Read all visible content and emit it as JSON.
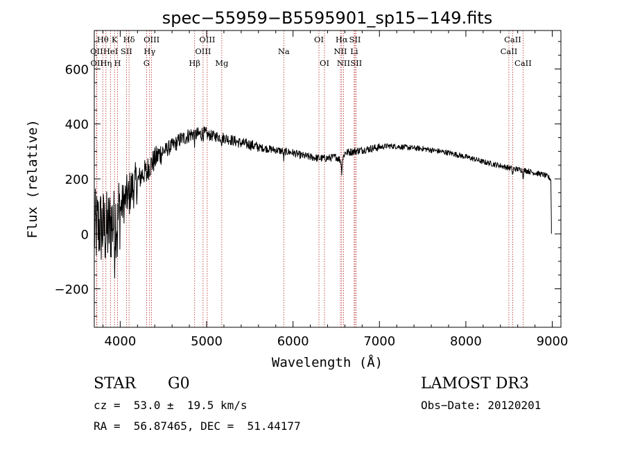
{
  "chart_data": {
    "type": "line",
    "title": "spec−55959−B5595901_sp15−149.fits",
    "xlabel": "Wavelength (Å)",
    "ylabel": "Flux (relative)",
    "xlim": [
      3700,
      9100
    ],
    "ylim": [
      -340,
      740
    ],
    "xticks": [
      {
        "value": 4000,
        "label": "4000"
      },
      {
        "value": 5000,
        "label": "5000"
      },
      {
        "value": 6000,
        "label": "6000"
      },
      {
        "value": 7000,
        "label": "7000"
      },
      {
        "value": 8000,
        "label": "8000"
      },
      {
        "value": 9000,
        "label": "9000"
      }
    ],
    "yticks": [
      {
        "value": -200,
        "label": "−200"
      },
      {
        "value": 0,
        "label": "0"
      },
      {
        "value": 200,
        "label": "200"
      },
      {
        "value": 400,
        "label": "400"
      },
      {
        "value": 600,
        "label": "600"
      }
    ],
    "spectrum_envelope": {
      "x": [
        3700,
        3750,
        3800,
        3850,
        3900,
        3950,
        4000,
        4050,
        4100,
        4150,
        4200,
        4250,
        4300,
        4350,
        4400,
        4450,
        4500,
        4550,
        4600,
        4650,
        4700,
        4750,
        4800,
        4850,
        4900,
        4950,
        5000,
        5100,
        5200,
        5300,
        5400,
        5500,
        5600,
        5700,
        5800,
        5900,
        6000,
        6100,
        6200,
        6300,
        6400,
        6500,
        6563,
        6600,
        6700,
        6800,
        6900,
        7000,
        7100,
        7200,
        7300,
        7400,
        7500,
        7600,
        7700,
        7800,
        7900,
        8000,
        8100,
        8200,
        8300,
        8400,
        8500,
        8600,
        8700,
        8800,
        8900,
        8960,
        9000
      ],
      "y": [
        10,
        30,
        20,
        10,
        40,
        60,
        90,
        120,
        150,
        170,
        190,
        215,
        230,
        250,
        270,
        290,
        300,
        310,
        320,
        330,
        345,
        350,
        360,
        365,
        360,
        365,
        360,
        355,
        350,
        340,
        330,
        325,
        315,
        310,
        305,
        300,
        295,
        285,
        280,
        275,
        275,
        280,
        265,
        295,
        300,
        305,
        310,
        315,
        320,
        318,
        315,
        312,
        310,
        305,
        300,
        295,
        288,
        280,
        272,
        262,
        255,
        248,
        240,
        235,
        230,
        222,
        215,
        205,
        195
      ]
    },
    "spectral_lines": [
      {
        "label": "Hθ",
        "wavelength": 3798,
        "row": 1
      },
      {
        "label": "OII",
        "wavelength": 3727,
        "row": 2
      },
      {
        "label": "OII",
        "wavelength": 3730,
        "row": 3
      },
      {
        "label": "Hη",
        "wavelength": 3835,
        "row": 3
      },
      {
        "label": "K",
        "wavelength": 3934,
        "row": 1
      },
      {
        "label": "HeI",
        "wavelength": 3889,
        "row": 2
      },
      {
        "label": "H",
        "wavelength": 3969,
        "row": 3
      },
      {
        "label": "SII",
        "wavelength": 4072,
        "row": 2
      },
      {
        "label": "Hδ",
        "wavelength": 4102,
        "row": 1
      },
      {
        "label": "OIII",
        "wavelength": 4363,
        "row": 1
      },
      {
        "label": "Hγ",
        "wavelength": 4340,
        "row": 2
      },
      {
        "label": "G",
        "wavelength": 4305,
        "row": 3
      },
      {
        "label": "Hβ",
        "wavelength": 4861,
        "row": 3
      },
      {
        "label": "OIII",
        "wavelength": 5007,
        "row": 1
      },
      {
        "label": "OIII",
        "wavelength": 4959,
        "row": 2
      },
      {
        "label": "Mg",
        "wavelength": 5175,
        "row": 3
      },
      {
        "label": "Na",
        "wavelength": 5893,
        "row": 2
      },
      {
        "label": "OI",
        "wavelength": 6300,
        "row": 1
      },
      {
        "label": "OI",
        "wavelength": 6364,
        "row": 3
      },
      {
        "label": "Hα",
        "wavelength": 6563,
        "row": 1
      },
      {
        "label": "NII",
        "wavelength": 6548,
        "row": 2
      },
      {
        "label": "NII",
        "wavelength": 6584,
        "row": 3
      },
      {
        "label": "SII",
        "wavelength": 6717,
        "row": 1
      },
      {
        "label": "Li",
        "wavelength": 6708,
        "row": 2
      },
      {
        "label": "SII",
        "wavelength": 6731,
        "row": 3
      },
      {
        "label": "CaII",
        "wavelength": 8542,
        "row": 1
      },
      {
        "label": "CaII",
        "wavelength": 8498,
        "row": 2
      },
      {
        "label": "CaII",
        "wavelength": 8662,
        "row": 3
      }
    ],
    "line_color": "#000000",
    "marker_color": "#b22222",
    "grid": false
  },
  "info": {
    "object_class": "STAR",
    "subclass": "G0",
    "survey": "LAMOST DR3",
    "redshift": "cz =  53.0 ±  19.5 km/s",
    "obs_date": "Obs−Date: 20120201",
    "coordinates": "RA =  56.87465, DEC =  51.44177"
  }
}
